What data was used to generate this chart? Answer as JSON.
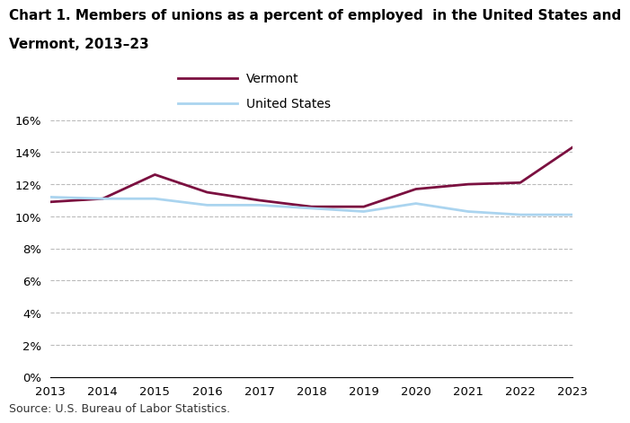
{
  "years": [
    2013,
    2014,
    2015,
    2016,
    2017,
    2018,
    2019,
    2020,
    2021,
    2022,
    2023
  ],
  "vermont": [
    10.9,
    11.1,
    12.6,
    11.5,
    11.0,
    10.6,
    10.6,
    11.7,
    12.0,
    12.1,
    14.3
  ],
  "united_states": [
    11.2,
    11.1,
    11.1,
    10.7,
    10.7,
    10.5,
    10.3,
    10.8,
    10.3,
    10.1,
    10.1
  ],
  "vermont_color": "#7b1040",
  "us_color": "#aad4ef",
  "title_line1": "Chart 1. Members of unions as a percent of employed  in the United States and",
  "title_line2": "Vermont, 2013–23",
  "legend_labels": [
    "Vermont",
    "United States"
  ],
  "ylim": [
    0,
    16
  ],
  "yticks": [
    0,
    2,
    4,
    6,
    8,
    10,
    12,
    14,
    16
  ],
  "source": "Source: U.S. Bureau of Labor Statistics.",
  "line_width": 2.0,
  "title_fontsize": 11,
  "tick_fontsize": 9.5,
  "legend_fontsize": 10,
  "source_fontsize": 9
}
